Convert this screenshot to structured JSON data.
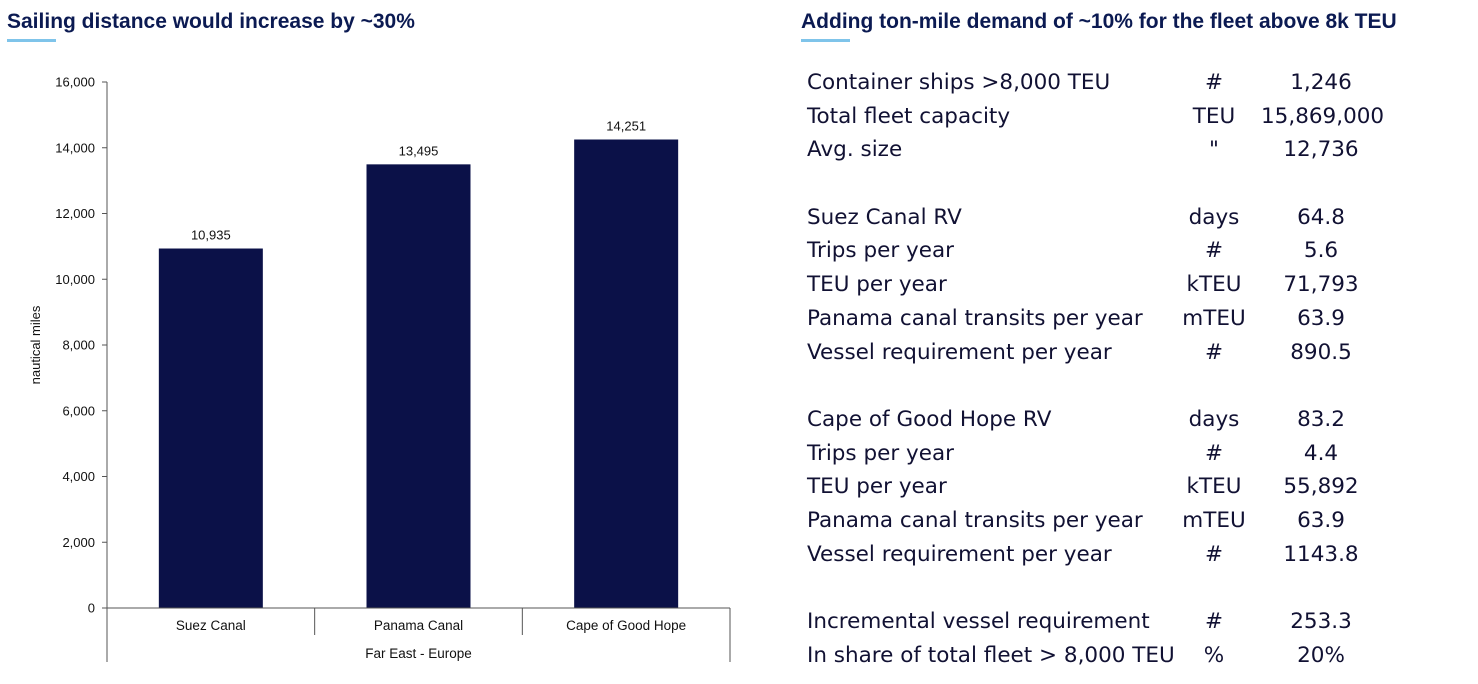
{
  "left_panel": {
    "title": "Sailing distance would increase by ~30%"
  },
  "right_panel": {
    "title": "Adding ton-mile demand of ~10% for the fleet above 8k TEU",
    "groups": [
      [
        {
          "label": "Container ships >8,000 TEU",
          "unit": "#",
          "value": "1,246"
        },
        {
          "label": "Total fleet capacity",
          "unit": "TEU",
          "value": "15,869,000"
        },
        {
          "label": "Avg. size",
          "unit": "\"",
          "value": "12,736"
        }
      ],
      [
        {
          "label": "Suez Canal RV",
          "unit": "days",
          "value": "64.8"
        },
        {
          "label": "Trips per year",
          "unit": "#",
          "value": "5.6"
        },
        {
          "label": "TEU per year",
          "unit": "kTEU",
          "value": "71,793"
        },
        {
          "label": "Panama canal transits per year",
          "unit": "mTEU",
          "value": "63.9"
        },
        {
          "label": "Vessel requirement per year",
          "unit": "#",
          "value": "890.5"
        }
      ],
      [
        {
          "label": "Cape of Good Hope RV",
          "unit": "days",
          "value": "83.2"
        },
        {
          "label": "Trips per year",
          "unit": "#",
          "value": "4.4"
        },
        {
          "label": "TEU per year",
          "unit": "kTEU",
          "value": "55,892"
        },
        {
          "label": "Panama canal transits per year",
          "unit": "mTEU",
          "value": "63.9"
        },
        {
          "label": "Vessel requirement per year",
          "unit": "#",
          "value": "1143.8"
        }
      ],
      [
        {
          "label": "Incremental vessel requirement",
          "unit": "#",
          "value": "253.3"
        },
        {
          "label": "In share of total fleet > 8,000 TEU",
          "unit": "%",
          "value": "20%"
        }
      ]
    ]
  },
  "colors": {
    "bar": "#0b1148",
    "title": "#0b1a52",
    "title_accent": "#7fc4ea"
  },
  "chart_data": {
    "type": "bar",
    "categories": [
      "Suez Canal",
      "Panama Canal",
      "Cape of Good Hope"
    ],
    "group_label": "Far East - Europe",
    "values": [
      10935,
      13495,
      14251
    ],
    "data_labels": [
      "10,935",
      "13,495",
      "14,251"
    ],
    "ylabel": "nautical miles",
    "ylim": [
      0,
      16000
    ],
    "yticks": [
      0,
      2000,
      4000,
      6000,
      8000,
      10000,
      12000,
      14000,
      16000
    ],
    "ytick_labels": [
      "0",
      "2,000",
      "4,000",
      "6,000",
      "8,000",
      "10,000",
      "12,000",
      "14,000",
      "16,000"
    ],
    "grid": false,
    "legend": "none"
  }
}
